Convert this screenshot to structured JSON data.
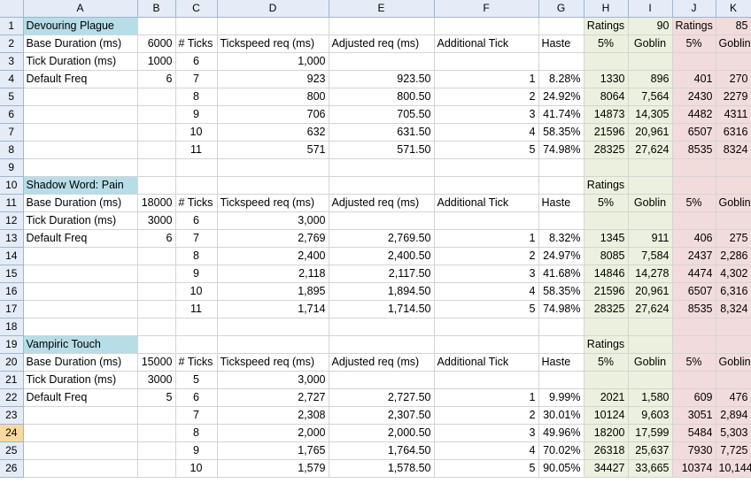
{
  "columns": [
    "A",
    "B",
    "C",
    "D",
    "E",
    "F",
    "G",
    "H",
    "I",
    "J",
    "K"
  ],
  "selected_row": 24,
  "rows": [
    [
      "1",
      "Devouring Plague",
      "",
      "",
      "",
      "",
      "",
      "",
      "Ratings",
      "90",
      "Ratings",
      "85"
    ],
    [
      "2",
      "Base Duration (ms)",
      "6000",
      "# Ticks",
      "Tickspeed req (ms)",
      "Adjusted req (ms)",
      "Additional Tick",
      "Haste",
      "5%",
      "Goblin",
      "5%",
      "Goblin"
    ],
    [
      "3",
      "Tick Duration (ms)",
      "1000",
      "6",
      "1,000",
      "",
      "",
      "",
      "",
      "",
      "",
      ""
    ],
    [
      "4",
      "Default Freq",
      "6",
      "7",
      "923",
      "923.50",
      "1",
      "8.28%",
      "1330",
      "896",
      "401",
      "270"
    ],
    [
      "5",
      "",
      "",
      "8",
      "800",
      "800.50",
      "2",
      "24.92%",
      "8064",
      "7,564",
      "2430",
      "2279"
    ],
    [
      "6",
      "",
      "",
      "9",
      "706",
      "705.50",
      "3",
      "41.74%",
      "14873",
      "14,305",
      "4482",
      "4311"
    ],
    [
      "7",
      "",
      "",
      "10",
      "632",
      "631.50",
      "4",
      "58.35%",
      "21596",
      "20,961",
      "6507",
      "6316"
    ],
    [
      "8",
      "",
      "",
      "11",
      "571",
      "571.50",
      "5",
      "74.98%",
      "28325",
      "27,624",
      "8535",
      "8324"
    ],
    [
      "9",
      "",
      "",
      "",
      "",
      "",
      "",
      "",
      "",
      "",
      "",
      ""
    ],
    [
      "10",
      "Shadow Word: Pain",
      "",
      "",
      "",
      "",
      "",
      "",
      "Ratings",
      "",
      "",
      ""
    ],
    [
      "11",
      "Base Duration (ms)",
      "18000",
      "# Ticks",
      "Tickspeed req (ms)",
      "Adjusted req (ms)",
      "Additional Tick",
      "Haste",
      "5%",
      "Goblin",
      "5%",
      "Goblin"
    ],
    [
      "12",
      "Tick Duration (ms)",
      "3000",
      "6",
      "3,000",
      "",
      "",
      "",
      "",
      "",
      "",
      ""
    ],
    [
      "13",
      "Default Freq",
      "6",
      "7",
      "2,769",
      "2,769.50",
      "1",
      "8.32%",
      "1345",
      "911",
      "406",
      "275"
    ],
    [
      "14",
      "",
      "",
      "8",
      "2,400",
      "2,400.50",
      "2",
      "24.97%",
      "8085",
      "7,584",
      "2437",
      "2,286"
    ],
    [
      "15",
      "",
      "",
      "9",
      "2,118",
      "2,117.50",
      "3",
      "41.68%",
      "14846",
      "14,278",
      "4474",
      "4,302"
    ],
    [
      "16",
      "",
      "",
      "10",
      "1,895",
      "1,894.50",
      "4",
      "58.35%",
      "21596",
      "20,961",
      "6507",
      "6,316"
    ],
    [
      "17",
      "",
      "",
      "11",
      "1,714",
      "1,714.50",
      "5",
      "74.98%",
      "28325",
      "27,624",
      "8535",
      "8,324"
    ],
    [
      "18",
      "",
      "",
      "",
      "",
      "",
      "",
      "",
      "",
      "",
      "",
      ""
    ],
    [
      "19",
      "Vampiric Touch",
      "",
      "",
      "",
      "",
      "",
      "",
      "Ratings",
      "",
      "",
      ""
    ],
    [
      "20",
      "Base Duration (ms)",
      "15000",
      "# Ticks",
      "Tickspeed req (ms)",
      "Adjusted req (ms)",
      "Additional Tick",
      "Haste",
      "5%",
      "Goblin",
      "5%",
      "Goblin"
    ],
    [
      "21",
      "Tick Duration (ms)",
      "3000",
      "5",
      "3,000",
      "",
      "",
      "",
      "",
      "",
      "",
      ""
    ],
    [
      "22",
      "Default Freq",
      "5",
      "6",
      "2,727",
      "2,727.50",
      "1",
      "9.99%",
      "2021",
      "1,580",
      "609",
      "476"
    ],
    [
      "23",
      "",
      "",
      "7",
      "2,308",
      "2,307.50",
      "2",
      "30.01%",
      "10124",
      "9,603",
      "3051",
      "2,894"
    ],
    [
      "24",
      "",
      "",
      "8",
      "2,000",
      "2,000.50",
      "3",
      "49.96%",
      "18200",
      "17,599",
      "5484",
      "5,303"
    ],
    [
      "25",
      "",
      "",
      "9",
      "1,765",
      "1,764.50",
      "4",
      "70.02%",
      "26318",
      "25,637",
      "7930",
      "7,725"
    ],
    [
      "26",
      "",
      "",
      "10",
      "1,579",
      "1,578.50",
      "5",
      "90.05%",
      "34427",
      "33,665",
      "10374",
      "10,144"
    ]
  ]
}
